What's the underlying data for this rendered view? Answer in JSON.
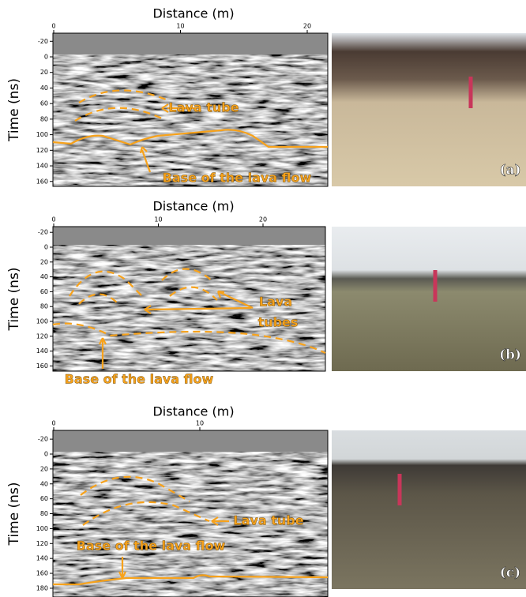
{
  "panels": [
    {
      "x_label": "Distance (m)",
      "y_label": "Time (ns)",
      "xticks": [
        0,
        10,
        20
      ],
      "yticks": [
        -20,
        0,
        20,
        40,
        60,
        80,
        100,
        120,
        140,
        160
      ],
      "annotations": [
        "Lava tube",
        "Base of the lava flow"
      ],
      "photo_label": "(a)"
    },
    {
      "x_label": "Distance (m)",
      "y_label": "Time (ns)",
      "xticks": [
        0,
        10,
        20
      ],
      "yticks": [
        -20,
        0,
        20,
        40,
        60,
        80,
        100,
        120,
        140,
        160
      ],
      "annotations": [
        "Lava",
        "tubes",
        "Base of the lava flow"
      ],
      "photo_label": "(b)"
    },
    {
      "x_label": "Distance (m)",
      "y_label": "Time (ns)",
      "xticks": [
        0,
        10
      ],
      "yticks": [
        -20,
        0,
        20,
        40,
        60,
        80,
        100,
        120,
        140,
        160,
        180
      ],
      "annotations": [
        "Lava tube",
        "Base of the lava flow"
      ],
      "photo_label": "(c)"
    }
  ]
}
